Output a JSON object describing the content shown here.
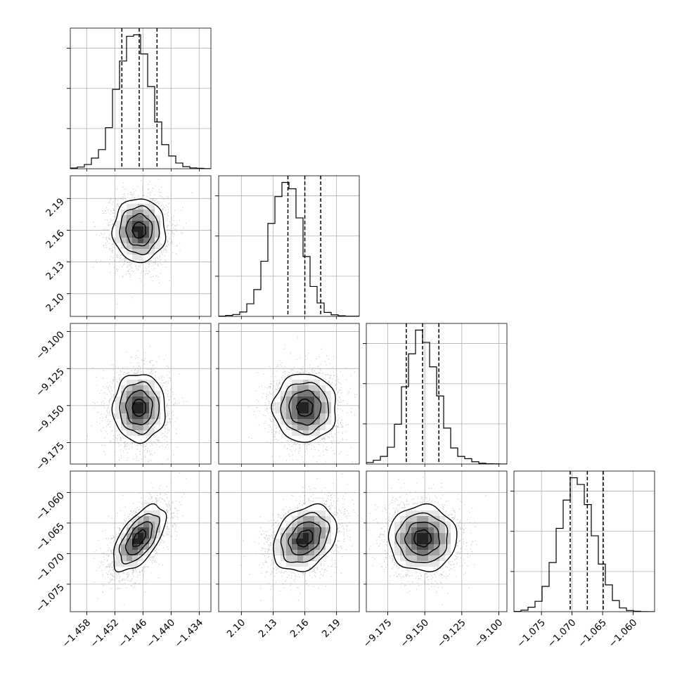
{
  "chart_data": {
    "type": "corner",
    "n_params": 4,
    "params": [
      {
        "index": 0,
        "range": [
          -1.4615,
          -1.4315
        ],
        "ticks": [
          -1.458,
          -1.452,
          -1.446,
          -1.44,
          -1.434
        ],
        "tick_labels": [
          "−1.458",
          "−1.452",
          "−1.446",
          "−1.440",
          "−1.434"
        ],
        "quantiles": [
          -1.4505,
          -1.4468,
          -1.443
        ]
      },
      {
        "index": 1,
        "range": [
          2.0785,
          2.2115
        ],
        "ticks": [
          2.1,
          2.13,
          2.16,
          2.19
        ],
        "tick_labels": [
          "2.10",
          "2.13",
          "2.16",
          "2.19"
        ],
        "quantiles": [
          2.144,
          2.16,
          2.175
        ]
      },
      {
        "index": 2,
        "range": [
          -9.1895,
          -9.0945
        ],
        "ticks": [
          -9.175,
          -9.15,
          -9.125,
          -9.1
        ],
        "tick_labels": [
          "−9.100",
          "−9.125",
          "−9.150",
          "−9.175"
        ],
        "tick_labels_x": [
          "−9.175",
          "−9.150",
          "−9.125",
          "−9.100"
        ],
        "tick_labels_y": [
          "−9.100",
          "−9.125",
          "−9.150",
          "−9.175"
        ],
        "quantiles": [
          -9.1625,
          -9.1515,
          -9.1405
        ]
      },
      {
        "index": 3,
        "range": [
          -1.0795,
          -1.0565
        ],
        "ticks": [
          -1.075,
          -1.07,
          -1.065,
          -1.06
        ],
        "tick_labels_x": [
          "−1.075",
          "−1.070",
          "−1.065",
          "−1.060"
        ],
        "tick_labels_y": [
          "−1.060",
          "−1.065",
          "−1.070",
          "−1.075"
        ],
        "quantiles": [
          -1.0703,
          -1.0675,
          -1.0649
        ]
      }
    ],
    "histograms": [
      {
        "param": 0,
        "bin_start": -1.4615,
        "bin_width": 0.0015,
        "counts": [
          5,
          12,
          30,
          75,
          135,
          290,
          560,
          760,
          935,
          945,
          810,
          580,
          330,
          170,
          90,
          40,
          15,
          6,
          3,
          1
        ]
      },
      {
        "param": 1,
        "bin_start": 2.0785,
        "bin_width": 0.00665,
        "counts": [
          2,
          6,
          12,
          28,
          80,
          170,
          350,
          590,
          760,
          850,
          810,
          625,
          380,
          190,
          85,
          25,
          10,
          4,
          1,
          1
        ]
      },
      {
        "param": 2,
        "bin_start": -9.1895,
        "bin_width": 0.00475,
        "counts": [
          10,
          25,
          50,
          110,
          260,
          505,
          720,
          875,
          795,
          635,
          445,
          235,
          105,
          50,
          35,
          15,
          5,
          2,
          1,
          0
        ]
      },
      {
        "param": 3,
        "bin_start": -1.0795,
        "bin_width": 0.00115,
        "counts": [
          2,
          10,
          30,
          70,
          170,
          330,
          560,
          750,
          900,
          855,
          720,
          510,
          320,
          180,
          75,
          25,
          8,
          3,
          1,
          0
        ]
      }
    ],
    "pairs": [
      {
        "x_param": 0,
        "y_param": 1,
        "mean": [
          -1.4468,
          2.16
        ],
        "sd": [
          0.0028,
          0.015
        ],
        "corr": 0.0
      },
      {
        "x_param": 0,
        "y_param": 2,
        "mean": [
          -1.4468,
          -9.1515
        ],
        "sd": [
          0.0028,
          0.0115
        ],
        "corr": 0.0
      },
      {
        "x_param": 1,
        "y_param": 2,
        "mean": [
          2.16,
          -9.1515
        ],
        "sd": [
          0.015,
          0.0115
        ],
        "corr": 0.0
      },
      {
        "x_param": 0,
        "y_param": 3,
        "mean": [
          -1.4468,
          -1.0675
        ],
        "sd": [
          0.0028,
          0.0027
        ],
        "corr": 0.6
      },
      {
        "x_param": 1,
        "y_param": 3,
        "mean": [
          2.16,
          -1.0675
        ],
        "sd": [
          0.015,
          0.0027
        ],
        "corr": 0.3
      },
      {
        "x_param": 2,
        "y_param": 3,
        "mean": [
          -9.1515,
          -1.0675
        ],
        "sd": [
          0.0115,
          0.0027
        ],
        "corr": 0.0
      }
    ],
    "contour_levels_sigma": [
      0.5,
      1.0,
      1.5,
      2.0
    ],
    "grid": true,
    "colors": {
      "line": "#000000",
      "grid": "#b0b0b0",
      "points": "#9e9e9e"
    }
  }
}
